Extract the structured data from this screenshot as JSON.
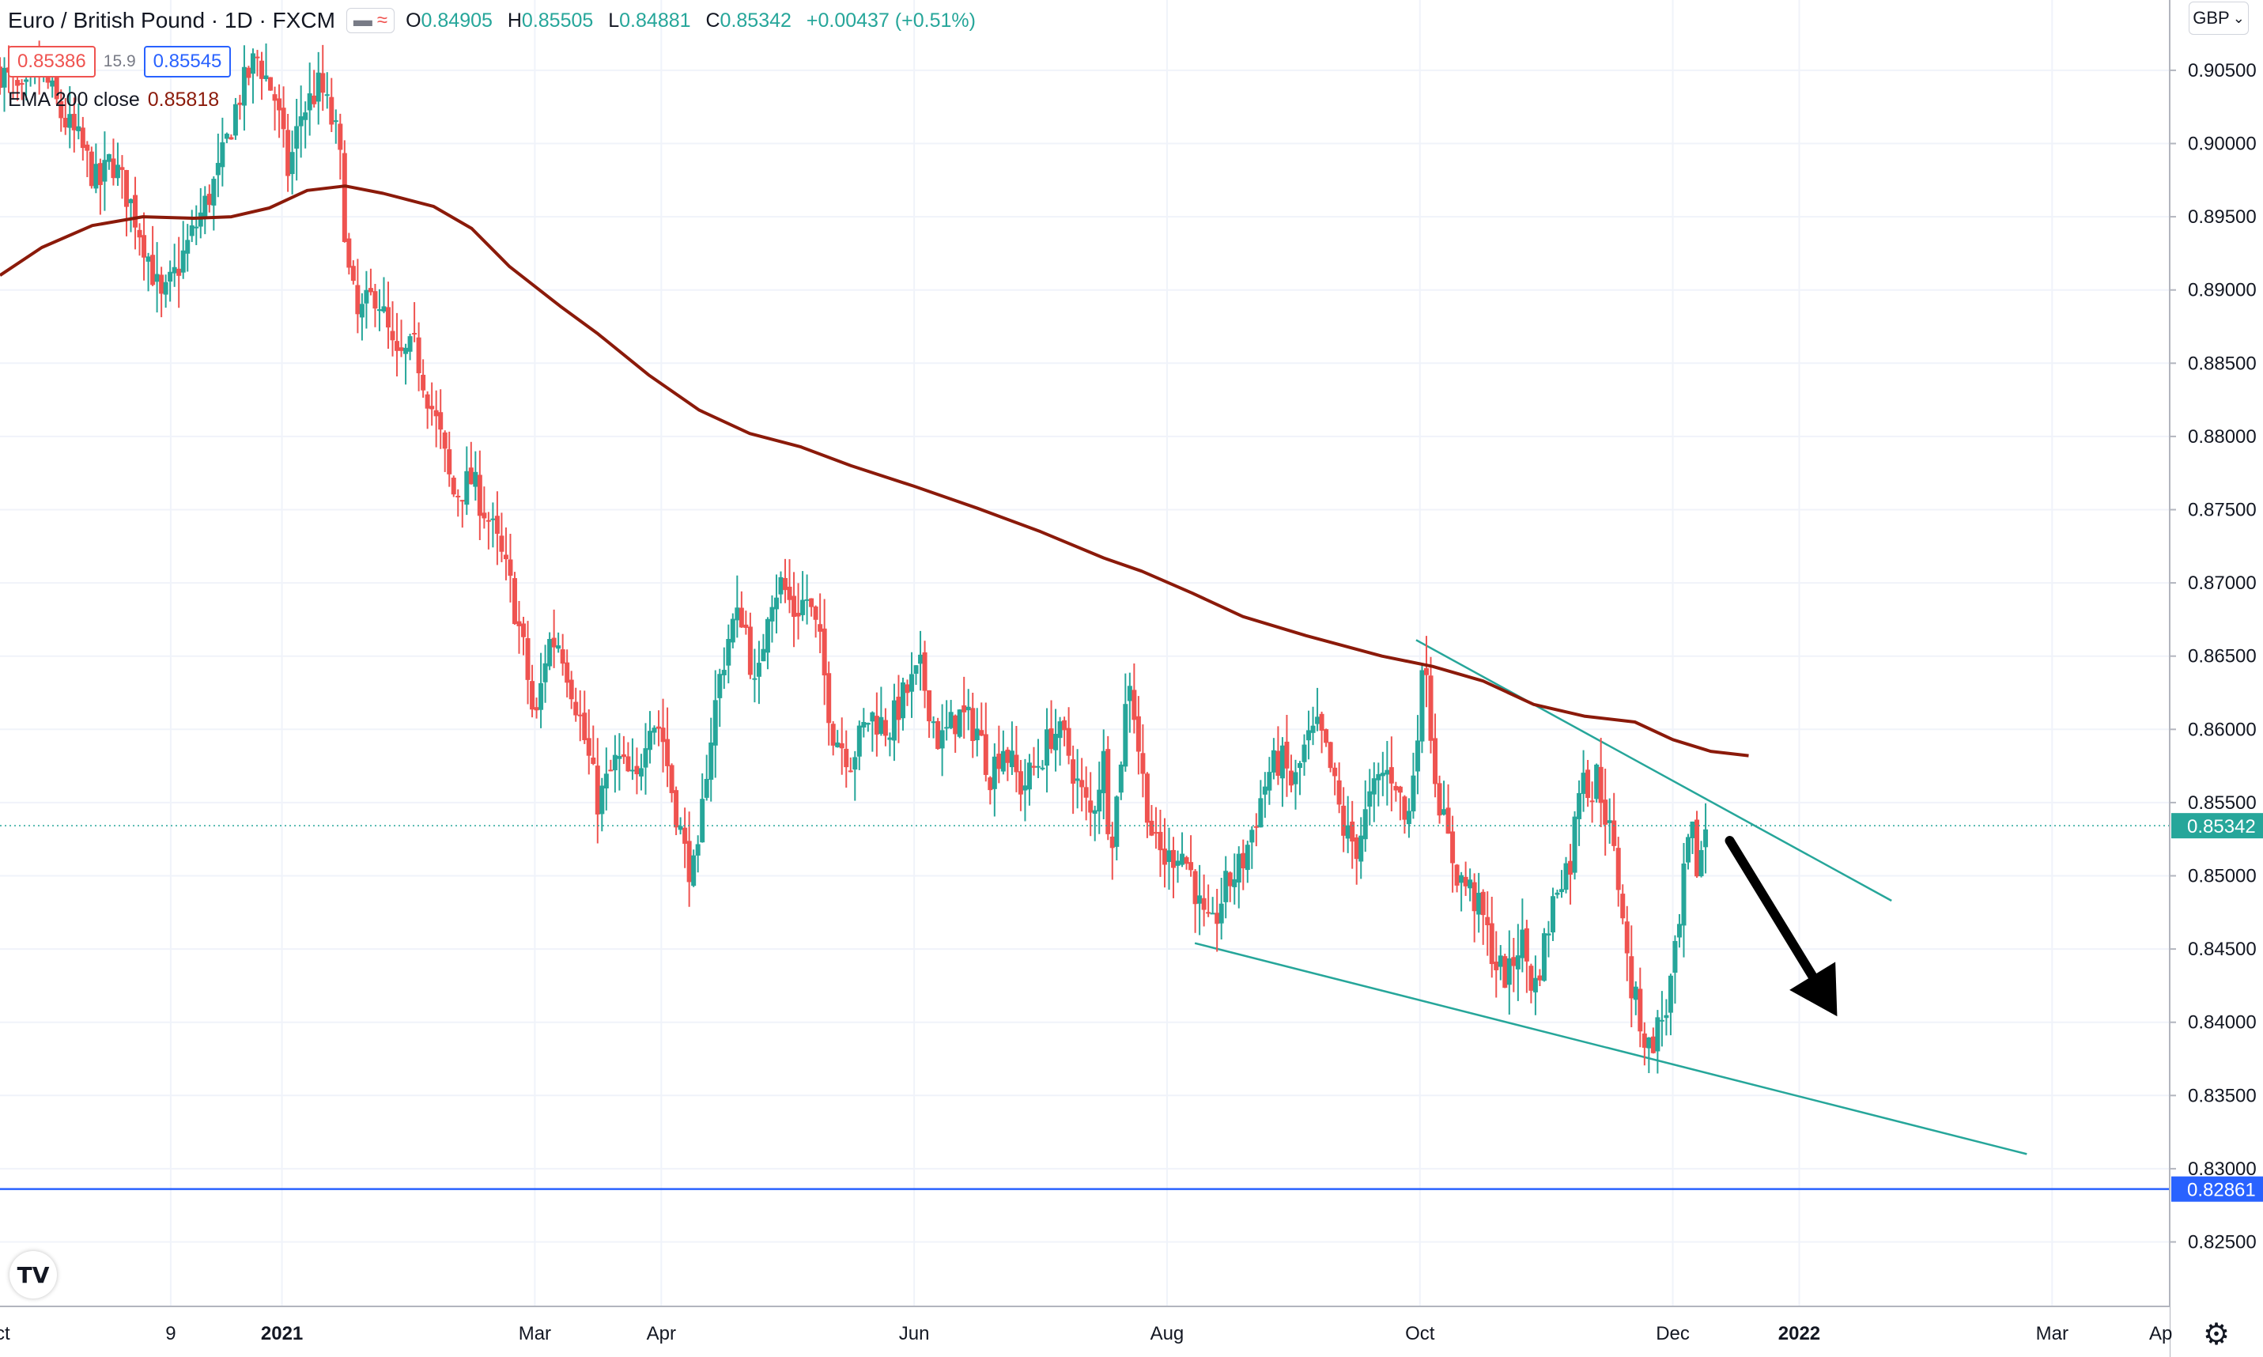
{
  "legend": {
    "symbol": "Euro / British Pound · 1D · FXCM",
    "open_label": "O",
    "open": "0.84905",
    "high_label": "H",
    "high": "0.85505",
    "low_label": "L",
    "low": "0.84881",
    "close_label": "C",
    "close": "0.85342",
    "change": "+0.00437 (+0.51%)",
    "sell_price": "0.85386",
    "spread": "15.9",
    "buy_price": "0.85545",
    "indicator": "EMA 200 close",
    "indicator_value": "0.85818"
  },
  "toolbar": {
    "currency_button": "GBP",
    "settings_icon": "gear-icon",
    "logo_icon": "tradingview-logo-icon"
  },
  "colors": {
    "up": "#26a69a",
    "down": "#ef5350",
    "ema": "#8b1a0a",
    "trend": "#26a69a",
    "level": "#2962ff",
    "arrow": "#000000"
  },
  "chart_data": {
    "type": "candlestick",
    "title": "Euro / British Pound · 1D · FXCM",
    "x_ticks": [
      {
        "label": "9",
        "month": 0.62
      },
      {
        "label": "2021",
        "month": 1.5
      },
      {
        "label": "Mar",
        "month": 3.5
      },
      {
        "label": "Apr",
        "month": 4.5
      },
      {
        "label": "Jun",
        "month": 6.5
      },
      {
        "label": "Aug",
        "month": 8.5
      },
      {
        "label": "Oct",
        "month": 10.5
      },
      {
        "label": "Dec",
        "month": 12.5
      },
      {
        "label": "2022",
        "month": 13.5
      },
      {
        "label": "Mar",
        "month": 15.5
      }
    ],
    "x_edge_labels": {
      "left": "ct",
      "right": "Ap"
    },
    "x_range": [
      -0.73,
      16.43
    ],
    "y_range": [
      0.8206,
      0.9098
    ],
    "y_ticks": [
      "0.82500",
      "0.83000",
      "0.83500",
      "0.84000",
      "0.84500",
      "0.85000",
      "0.85500",
      "0.86000",
      "0.86500",
      "0.87000",
      "0.87500",
      "0.88000",
      "0.88500",
      "0.89000",
      "0.89500",
      "0.90000",
      "0.90500"
    ],
    "grid": true,
    "last_price": {
      "value": 0.85342,
      "label": "0.85342"
    },
    "horizontal_level": {
      "value": 0.82861,
      "label": "0.82861"
    },
    "price_keypoints": [
      [
        -0.73,
        0.905
      ],
      [
        -0.55,
        0.903
      ],
      [
        -0.4,
        0.905
      ],
      [
        -0.25,
        0.902
      ],
      [
        -0.1,
        0.9
      ],
      [
        0.05,
        0.897
      ],
      [
        0.15,
        0.899
      ],
      [
        0.3,
        0.896
      ],
      [
        0.42,
        0.893
      ],
      [
        0.55,
        0.889
      ],
      [
        0.7,
        0.892
      ],
      [
        0.85,
        0.895
      ],
      [
        1.0,
        0.898
      ],
      [
        1.15,
        0.903
      ],
      [
        1.3,
        0.906
      ],
      [
        1.45,
        0.903
      ],
      [
        1.55,
        0.898
      ],
      [
        1.65,
        0.902
      ],
      [
        1.8,
        0.904
      ],
      [
        1.95,
        0.9
      ],
      [
        2.02,
        0.8915
      ],
      [
        2.1,
        0.888
      ],
      [
        2.25,
        0.89
      ],
      [
        2.4,
        0.885
      ],
      [
        2.55,
        0.886
      ],
      [
        2.75,
        0.88
      ],
      [
        2.85,
        0.876
      ],
      [
        3.0,
        0.877
      ],
      [
        3.15,
        0.874
      ],
      [
        3.3,
        0.87
      ],
      [
        3.42,
        0.865
      ],
      [
        3.5,
        0.86
      ],
      [
        3.6,
        0.866
      ],
      [
        3.7,
        0.866
      ],
      [
        3.85,
        0.861
      ],
      [
        4.0,
        0.855
      ],
      [
        4.15,
        0.858
      ],
      [
        4.3,
        0.856
      ],
      [
        4.4,
        0.861
      ],
      [
        4.5,
        0.86
      ],
      [
        4.58,
        0.856
      ],
      [
        4.7,
        0.851
      ],
      [
        4.78,
        0.85
      ],
      [
        4.85,
        0.857
      ],
      [
        4.95,
        0.863
      ],
      [
        5.05,
        0.867
      ],
      [
        5.15,
        0.868
      ],
      [
        5.25,
        0.862
      ],
      [
        5.35,
        0.869
      ],
      [
        5.45,
        0.87
      ],
      [
        5.55,
        0.868
      ],
      [
        5.65,
        0.869
      ],
      [
        5.75,
        0.866
      ],
      [
        5.85,
        0.86
      ],
      [
        6.0,
        0.858
      ],
      [
        6.15,
        0.861
      ],
      [
        6.3,
        0.86
      ],
      [
        6.4,
        0.862
      ],
      [
        6.55,
        0.864
      ],
      [
        6.7,
        0.859
      ],
      [
        6.85,
        0.861
      ],
      [
        7.0,
        0.86
      ],
      [
        7.1,
        0.857
      ],
      [
        7.2,
        0.859
      ],
      [
        7.35,
        0.856
      ],
      [
        7.5,
        0.858
      ],
      [
        7.6,
        0.86
      ],
      [
        7.7,
        0.859
      ],
      [
        7.8,
        0.856
      ],
      [
        7.9,
        0.854
      ],
      [
        8.0,
        0.858
      ],
      [
        8.05,
        0.852
      ],
      [
        8.1,
        0.855
      ],
      [
        8.2,
        0.864
      ],
      [
        8.3,
        0.857
      ],
      [
        8.4,
        0.852
      ],
      [
        8.5,
        0.851
      ],
      [
        8.6,
        0.852
      ],
      [
        8.7,
        0.85
      ],
      [
        8.78,
        0.847
      ],
      [
        8.85,
        0.846
      ],
      [
        8.95,
        0.849
      ],
      [
        9.1,
        0.851
      ],
      [
        9.3,
        0.857
      ],
      [
        9.4,
        0.858
      ],
      [
        9.5,
        0.856
      ],
      [
        9.6,
        0.859
      ],
      [
        9.7,
        0.86
      ],
      [
        9.8,
        0.857
      ],
      [
        9.9,
        0.853
      ],
      [
        10.0,
        0.852
      ],
      [
        10.1,
        0.855
      ],
      [
        10.2,
        0.857
      ],
      [
        10.3,
        0.857
      ],
      [
        10.4,
        0.853
      ],
      [
        10.5,
        0.862
      ],
      [
        10.55,
        0.865
      ],
      [
        10.6,
        0.858
      ],
      [
        10.7,
        0.853
      ],
      [
        10.8,
        0.85
      ],
      [
        10.9,
        0.849
      ],
      [
        11.0,
        0.847
      ],
      [
        11.1,
        0.844
      ],
      [
        11.2,
        0.843
      ],
      [
        11.3,
        0.846
      ],
      [
        11.4,
        0.842
      ],
      [
        11.5,
        0.846
      ],
      [
        11.6,
        0.85
      ],
      [
        11.7,
        0.851
      ],
      [
        11.75,
        0.856
      ],
      [
        11.8,
        0.858
      ],
      [
        11.85,
        0.855
      ],
      [
        11.9,
        0.857
      ],
      [
        12.0,
        0.853
      ],
      [
        12.1,
        0.848
      ],
      [
        12.15,
        0.843
      ],
      [
        12.25,
        0.84
      ],
      [
        12.3,
        0.838
      ],
      [
        12.35,
        0.839
      ],
      [
        12.45,
        0.841
      ],
      [
        12.55,
        0.846
      ],
      [
        12.6,
        0.851
      ],
      [
        12.65,
        0.853
      ],
      [
        12.7,
        0.85
      ],
      [
        12.75,
        0.8534
      ]
    ],
    "ema_200": [
      [
        -0.73,
        0.891
      ],
      [
        -0.4,
        0.8929
      ],
      [
        0.0,
        0.8944
      ],
      [
        0.4,
        0.895
      ],
      [
        0.8,
        0.8949
      ],
      [
        1.1,
        0.895
      ],
      [
        1.4,
        0.8956
      ],
      [
        1.7,
        0.8968
      ],
      [
        2.0,
        0.8971
      ],
      [
        2.3,
        0.8966
      ],
      [
        2.7,
        0.8957
      ],
      [
        3.0,
        0.8942
      ],
      [
        3.3,
        0.8916
      ],
      [
        3.7,
        0.8889
      ],
      [
        4.0,
        0.887
      ],
      [
        4.4,
        0.8842
      ],
      [
        4.8,
        0.8818
      ],
      [
        5.2,
        0.8802
      ],
      [
        5.6,
        0.8793
      ],
      [
        6.0,
        0.878
      ],
      [
        6.5,
        0.8766
      ],
      [
        7.0,
        0.8751
      ],
      [
        7.5,
        0.8735
      ],
      [
        8.0,
        0.8717
      ],
      [
        8.3,
        0.8708
      ],
      [
        8.7,
        0.8693
      ],
      [
        9.1,
        0.8677
      ],
      [
        9.6,
        0.8664
      ],
      [
        10.2,
        0.865
      ],
      [
        10.6,
        0.8643
      ],
      [
        11.0,
        0.8633
      ],
      [
        11.4,
        0.8617
      ],
      [
        11.8,
        0.8609
      ],
      [
        12.2,
        0.8605
      ],
      [
        12.5,
        0.8593
      ],
      [
        12.8,
        0.8585
      ],
      [
        13.1,
        0.8582
      ]
    ],
    "trendlines": [
      {
        "name": "upper",
        "from": [
          10.47,
          0.8661
        ],
        "to": [
          14.23,
          0.8483
        ]
      },
      {
        "name": "lower",
        "from": [
          8.72,
          0.8454
        ],
        "to": [
          15.3,
          0.831
        ]
      }
    ],
    "annotation_arrow": {
      "from": [
        12.95,
        0.8524
      ],
      "to": [
        13.8,
        0.8404
      ]
    }
  }
}
